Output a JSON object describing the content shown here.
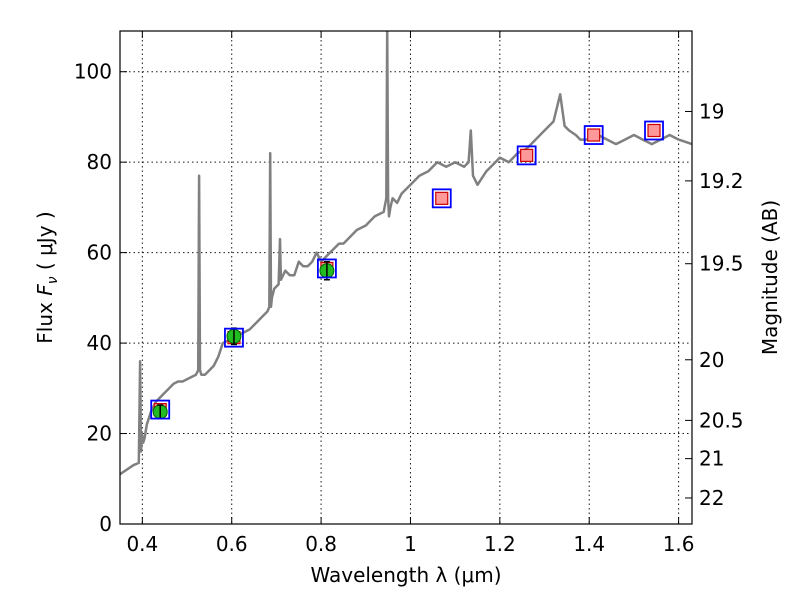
{
  "chart_data": {
    "type": "line",
    "xlabel": "Wavelength  λ (μm)",
    "ylabel": "Flux  F_ν  ( μJy )",
    "ylabel_right": "Magnitude (AB)",
    "xlim": [
      0.35,
      1.63
    ],
    "ylim": [
      0,
      109
    ],
    "grid": true,
    "x_ticks": [
      {
        "value": 0.4,
        "label": "0.4"
      },
      {
        "value": 0.6,
        "label": "0.6"
      },
      {
        "value": 0.8,
        "label": "0.8"
      },
      {
        "value": 1.0,
        "label": "1"
      },
      {
        "value": 1.2,
        "label": "1.2"
      },
      {
        "value": 1.4,
        "label": "1.4"
      },
      {
        "value": 1.6,
        "label": "1.6"
      }
    ],
    "y_ticks": [
      {
        "value": 0,
        "label": "0"
      },
      {
        "value": 20,
        "label": "20"
      },
      {
        "value": 40,
        "label": "40"
      },
      {
        "value": 60,
        "label": "60"
      },
      {
        "value": 80,
        "label": "80"
      },
      {
        "value": 100,
        "label": "100"
      }
    ],
    "right_ticks": [
      {
        "value": 19,
        "label": "19"
      },
      {
        "value": 19.2,
        "label": "19.2"
      },
      {
        "value": 19.5,
        "label": "19.5"
      },
      {
        "value": 20,
        "label": "20"
      },
      {
        "value": 20.5,
        "label": "20.5"
      },
      {
        "value": 21,
        "label": "21"
      },
      {
        "value": 22,
        "label": "22"
      }
    ],
    "spectrum": {
      "color": "#808080",
      "x": [
        0.35,
        0.365,
        0.38,
        0.392,
        0.395,
        0.397,
        0.399,
        0.402,
        0.405,
        0.41,
        0.42,
        0.43,
        0.44,
        0.45,
        0.46,
        0.47,
        0.48,
        0.49,
        0.5,
        0.51,
        0.52,
        0.525,
        0.527,
        0.529,
        0.532,
        0.54,
        0.55,
        0.56,
        0.57,
        0.58,
        0.6,
        0.62,
        0.64,
        0.65,
        0.66,
        0.67,
        0.68,
        0.684,
        0.686,
        0.688,
        0.69,
        0.695,
        0.705,
        0.708,
        0.71,
        0.715,
        0.72,
        0.73,
        0.74,
        0.75,
        0.76,
        0.77,
        0.78,
        0.79,
        0.8,
        0.81,
        0.82,
        0.83,
        0.84,
        0.85,
        0.86,
        0.87,
        0.88,
        0.9,
        0.92,
        0.94,
        0.946,
        0.948,
        0.95,
        0.952,
        0.955,
        0.96,
        0.97,
        0.98,
        1.0,
        1.02,
        1.04,
        1.06,
        1.08,
        1.1,
        1.12,
        1.13,
        1.135,
        1.14,
        1.15,
        1.17,
        1.19,
        1.2,
        1.22,
        1.24,
        1.26,
        1.28,
        1.3,
        1.32,
        1.335,
        1.345,
        1.355,
        1.37,
        1.38,
        1.4,
        1.42,
        1.44,
        1.46,
        1.48,
        1.5,
        1.52,
        1.54,
        1.56,
        1.58,
        1.6,
        1.63
      ],
      "y": [
        11,
        12,
        13,
        13.5,
        36,
        16,
        20,
        18,
        19,
        22,
        25,
        27,
        28,
        29,
        30,
        31,
        31.5,
        31.5,
        32,
        32.5,
        33,
        34,
        77,
        34,
        33,
        33,
        34,
        35,
        37,
        40,
        41,
        42,
        43,
        44,
        45,
        46,
        47,
        48,
        82,
        48,
        50,
        52,
        53,
        63,
        54,
        55,
        56,
        55,
        55,
        58,
        57,
        57,
        58,
        60,
        58,
        59,
        60,
        61,
        62,
        62,
        63,
        64,
        65,
        66,
        68,
        69,
        72,
        110,
        72,
        68,
        70,
        72,
        71,
        73,
        75,
        77,
        78,
        80,
        79,
        80,
        79,
        80,
        87,
        77,
        75,
        78,
        80,
        81,
        80,
        82,
        83,
        85,
        87,
        89,
        95,
        88,
        87,
        86,
        85,
        85,
        86,
        85,
        84,
        85,
        86,
        85,
        84,
        85,
        86,
        85,
        84
      ]
    },
    "photometry": [
      {
        "x": 0.44,
        "y": 24.8,
        "err": 1.5,
        "model": 25.3
      },
      {
        "x": 0.605,
        "y": 41.5,
        "err": 1.8,
        "model": 41.2
      },
      {
        "x": 0.813,
        "y": 56.0,
        "err": 2.0,
        "model": 56.5
      },
      {
        "x": 1.07,
        "y": null,
        "err": null,
        "model": 72.0
      },
      {
        "x": 1.26,
        "y": null,
        "err": null,
        "model": 81.5
      },
      {
        "x": 1.41,
        "y": null,
        "err": null,
        "model": 86.0
      },
      {
        "x": 1.545,
        "y": null,
        "err": null,
        "model": 87.0
      }
    ],
    "model_point_fill_color": "#ff9999",
    "model_marker_color": "#0000ff",
    "observed_color": "#22bb22"
  }
}
